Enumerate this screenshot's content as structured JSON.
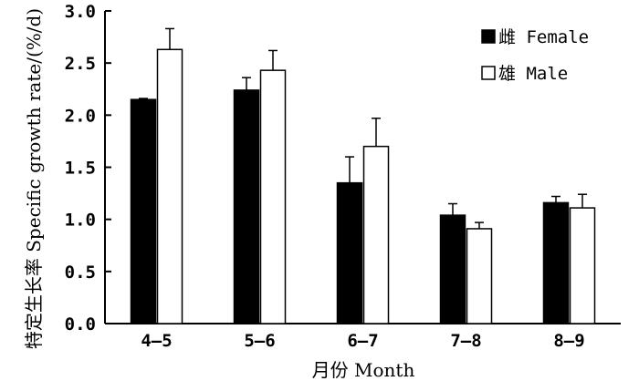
{
  "chart_data": {
    "type": "bar",
    "categories": [
      "4—5",
      "5—6",
      "6—7",
      "7—8",
      "8—9"
    ],
    "series": [
      {
        "name": "雌 Female",
        "values": [
          2.15,
          2.24,
          1.35,
          1.04,
          1.16
        ],
        "errors": [
          0.01,
          0.12,
          0.25,
          0.11,
          0.06
        ],
        "color": "#000000"
      },
      {
        "name": "雄 Male",
        "values": [
          2.63,
          2.43,
          1.7,
          0.91,
          1.11
        ],
        "errors": [
          0.2,
          0.19,
          0.27,
          0.06,
          0.13
        ],
        "color": "#ffffff"
      }
    ],
    "ylim": [
      0,
      3.0
    ],
    "yticks": [
      "0.0",
      "0.5",
      "1.0",
      "1.5",
      "2.0",
      "2.5",
      "3.0"
    ],
    "xlabel": "月份 Month",
    "ylabel": "特定生长率 Specific growth rate/(%/d)",
    "legend_position": "top-right",
    "grid": false
  }
}
